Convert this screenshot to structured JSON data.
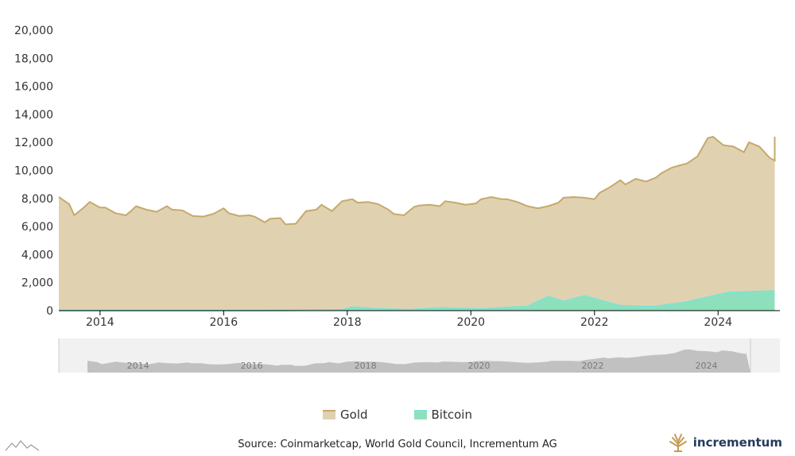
{
  "chart_data": {
    "type": "area",
    "title": "",
    "xlabel": "",
    "ylabel": "",
    "ylim": [
      0,
      20000
    ],
    "yticks": [
      "0",
      "2,000",
      "4,000",
      "6,000",
      "8,000",
      "10,000",
      "12,000",
      "14,000",
      "16,000",
      "18,000",
      "20,000"
    ],
    "xticks": [
      "2014",
      "2016",
      "2018",
      "2020",
      "2022",
      "2024"
    ],
    "xlim": [
      "2013-05",
      "2024-12"
    ],
    "grid": false,
    "legend_position": "bottom-center",
    "series": [
      {
        "name": "Gold",
        "color": "#e0d2b1",
        "line_color": "#c6a96b",
        "points": [
          [
            "2013-05",
            8100
          ],
          [
            "2013-07",
            7600
          ],
          [
            "2013-08",
            6800
          ],
          [
            "2013-10",
            7400
          ],
          [
            "2013-11",
            7750
          ],
          [
            "2014-01",
            7350
          ],
          [
            "2014-02",
            7350
          ],
          [
            "2014-04",
            6950
          ],
          [
            "2014-06",
            6800
          ],
          [
            "2014-07",
            7100
          ],
          [
            "2014-08",
            7450
          ],
          [
            "2014-10",
            7200
          ],
          [
            "2014-12",
            7050
          ],
          [
            "2015-02",
            7450
          ],
          [
            "2015-03",
            7200
          ],
          [
            "2015-05",
            7150
          ],
          [
            "2015-07",
            6750
          ],
          [
            "2015-09",
            6700
          ],
          [
            "2015-11",
            6900
          ],
          [
            "2016-01",
            7300
          ],
          [
            "2016-02",
            6950
          ],
          [
            "2016-04",
            6750
          ],
          [
            "2016-06",
            6800
          ],
          [
            "2016-07",
            6700
          ],
          [
            "2016-09",
            6300
          ],
          [
            "2016-10",
            6550
          ],
          [
            "2016-12",
            6600
          ],
          [
            "2017-01",
            6150
          ],
          [
            "2017-03",
            6200
          ],
          [
            "2017-05",
            7100
          ],
          [
            "2017-07",
            7200
          ],
          [
            "2017-08",
            7550
          ],
          [
            "2017-10",
            7100
          ],
          [
            "2017-12",
            7800
          ],
          [
            "2018-02",
            7950
          ],
          [
            "2018-03",
            7700
          ],
          [
            "2018-05",
            7750
          ],
          [
            "2018-07",
            7600
          ],
          [
            "2018-09",
            7200
          ],
          [
            "2018-10",
            6900
          ],
          [
            "2018-12",
            6800
          ],
          [
            "2019-02",
            7400
          ],
          [
            "2019-03",
            7500
          ],
          [
            "2019-05",
            7550
          ],
          [
            "2019-07",
            7450
          ],
          [
            "2019-08",
            7800
          ],
          [
            "2019-10",
            7700
          ],
          [
            "2019-12",
            7550
          ],
          [
            "2020-02",
            7650
          ],
          [
            "2020-03",
            7950
          ],
          [
            "2020-05",
            8100
          ],
          [
            "2020-07",
            7950
          ],
          [
            "2020-08",
            7950
          ],
          [
            "2020-10",
            7750
          ],
          [
            "2020-12",
            7450
          ],
          [
            "2021-02",
            7300
          ],
          [
            "2021-04",
            7450
          ],
          [
            "2021-06",
            7700
          ],
          [
            "2021-07",
            8050
          ],
          [
            "2021-09",
            8100
          ],
          [
            "2021-11",
            8050
          ],
          [
            "2022-01",
            7950
          ],
          [
            "2022-02",
            8400
          ],
          [
            "2022-04",
            8800
          ],
          [
            "2022-06",
            9300
          ],
          [
            "2022-07",
            9000
          ],
          [
            "2022-09",
            9400
          ],
          [
            "2022-11",
            9200
          ],
          [
            "2023-01",
            9500
          ],
          [
            "2023-02",
            9800
          ],
          [
            "2023-04",
            10200
          ],
          [
            "2023-06",
            10400
          ],
          [
            "2023-07",
            10500
          ],
          [
            "2023-09",
            11000
          ],
          [
            "2023-11",
            12300
          ],
          [
            "2023-12",
            12400
          ],
          [
            "2024-02",
            11800
          ],
          [
            "2024-04",
            11700
          ],
          [
            "2024-06",
            11300
          ],
          [
            "2024-07",
            12000
          ],
          [
            "2024-09",
            11700
          ],
          [
            "2024-11",
            10900
          ],
          [
            "2024-12",
            10700
          ],
          [
            "2024-12",
            11100
          ],
          [
            "2024-12",
            11800
          ],
          [
            "2024-12",
            12400
          ],
          [
            "2024-12",
            11600
          ],
          [
            "2024-12",
            11700
          ],
          [
            "2024-12",
            11800
          ],
          [
            "2024-12",
            11500
          ],
          [
            "2024-12",
            11700
          ]
        ]
      },
      {
        "name": "Bitcoin",
        "color": "#8ee0bd",
        "line_color": "#7fe3d1",
        "points": [
          [
            "2013-05",
            5
          ],
          [
            "2017-01",
            10
          ],
          [
            "2017-12",
            60
          ],
          [
            "2018-02",
            250
          ],
          [
            "2018-06",
            150
          ],
          [
            "2019-01",
            60
          ],
          [
            "2019-07",
            200
          ],
          [
            "2020-03",
            120
          ],
          [
            "2020-12",
            300
          ],
          [
            "2021-04",
            1000
          ],
          [
            "2021-07",
            650
          ],
          [
            "2021-11",
            1050
          ],
          [
            "2022-06",
            350
          ],
          [
            "2022-12",
            280
          ],
          [
            "2023-06",
            550
          ],
          [
            "2024-03",
            1300
          ],
          [
            "2024-12",
            1400
          ]
        ]
      }
    ],
    "navigator": {
      "xticks": [
        "2014",
        "2016",
        "2018",
        "2020",
        "2022",
        "2024"
      ]
    }
  },
  "legend": {
    "gold_label": "Gold",
    "bitcoin_label": "Bitcoin"
  },
  "footer": {
    "source_text": "Source: Coinmarketcap, World Gold Council, Incrementum AG",
    "brand_name": "incrementum"
  },
  "colors": {
    "gold_fill": "#e0d2b1",
    "gold_line": "#c6a96b",
    "bitcoin_fill": "#8ee0bd",
    "axis": "#000000",
    "navigator_bg": "#f1f1f1",
    "navigator_series": "#b8b8b8",
    "brand": "#243a5e",
    "brand_icon": "#c39b52"
  }
}
